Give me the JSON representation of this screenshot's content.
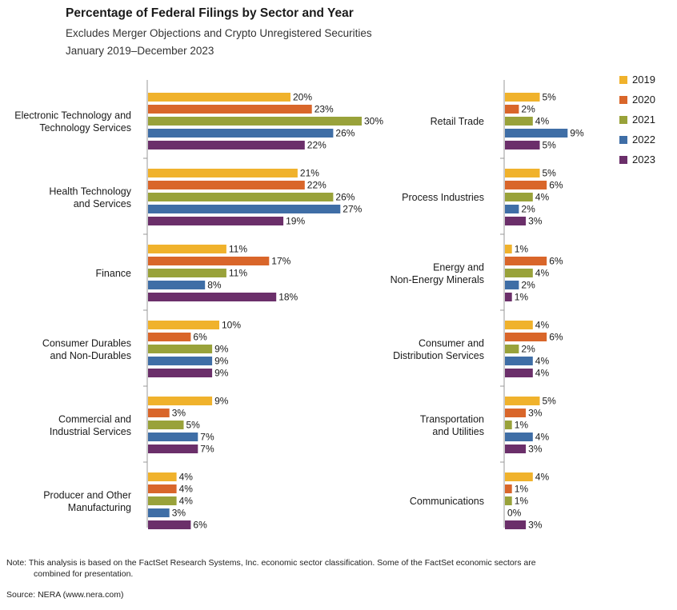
{
  "header": {
    "title": "Percentage of Federal Filings by Sector and Year",
    "subtitle": "Excludes Merger Objections and Crypto Unregistered Securities",
    "period": "January 2019–December 2023"
  },
  "footer": {
    "note": "Note: This analysis is based on the FactSet Research Systems, Inc. economic sector classification. Some of the FactSet economic sectors are",
    "note_cont": "combined for presentation.",
    "source": "Source: NERA (www.nera.com)"
  },
  "colors": {
    "2019": "#f0b22c",
    "2020": "#d9662a",
    "2021": "#99a23a",
    "2022": "#3f6ea6",
    "2023": "#6b2f6a",
    "axis": "#999999"
  },
  "chart_data": {
    "type": "bar",
    "orientation": "horizontal",
    "value_unit": "%",
    "legend": {
      "placement": "top-right",
      "entries": [
        "2019",
        "2020",
        "2021",
        "2022",
        "2023"
      ]
    },
    "panels": [
      {
        "sectors": [
          {
            "label": [
              "Electronic Technology and",
              "Technology Services"
            ],
            "values": [
              20,
              23,
              30,
              26,
              22
            ]
          },
          {
            "label": [
              "Health Technology",
              "and Services"
            ],
            "values": [
              21,
              22,
              26,
              27,
              19
            ]
          },
          {
            "label": [
              "Finance"
            ],
            "values": [
              11,
              17,
              11,
              8,
              18
            ]
          },
          {
            "label": [
              "Consumer Durables",
              "and Non-Durables"
            ],
            "values": [
              10,
              6,
              9,
              9,
              9
            ]
          },
          {
            "label": [
              "Commercial and",
              "Industrial Services"
            ],
            "values": [
              9,
              3,
              5,
              7,
              7
            ]
          },
          {
            "label": [
              "Producer and Other",
              "Manufacturing"
            ],
            "values": [
              4,
              4,
              4,
              3,
              6
            ]
          }
        ]
      },
      {
        "sectors": [
          {
            "label": [
              "Retail Trade"
            ],
            "values": [
              5,
              2,
              4,
              9,
              5
            ]
          },
          {
            "label": [
              "Process Industries"
            ],
            "values": [
              5,
              6,
              4,
              2,
              3
            ]
          },
          {
            "label": [
              "Energy and",
              "Non-Energy Minerals"
            ],
            "values": [
              1,
              6,
              4,
              2,
              1
            ]
          },
          {
            "label": [
              "Consumer and",
              "Distribution Services"
            ],
            "values": [
              4,
              6,
              2,
              4,
              4
            ]
          },
          {
            "label": [
              "Transportation",
              "and Utilities"
            ],
            "values": [
              5,
              3,
              1,
              4,
              3
            ]
          },
          {
            "label": [
              "Communications"
            ],
            "values": [
              4,
              1,
              1,
              0,
              3
            ]
          }
        ]
      }
    ]
  }
}
